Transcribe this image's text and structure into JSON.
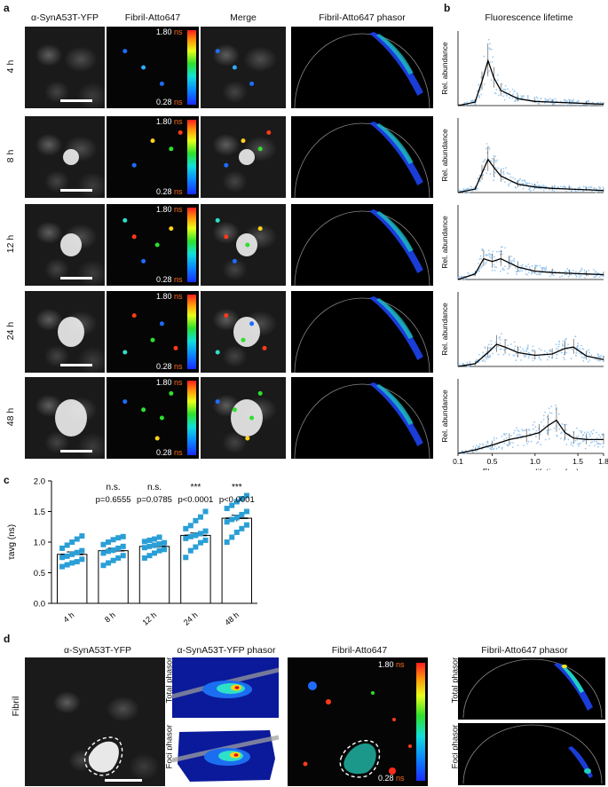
{
  "panel_a": {
    "label": "a",
    "columns": [
      "α-SynA53T-YFP",
      "Fibril-Atto647",
      "Merge",
      "Fibril-Atto647 phasor"
    ],
    "rows": [
      "4 h",
      "8 h",
      "12 h",
      "24 h",
      "48 h"
    ],
    "colorbar": {
      "max": "1.80",
      "min": "0.28",
      "unit": "ns"
    }
  },
  "panel_b": {
    "label": "b",
    "title": "Fluorescence lifetime",
    "ylabel": "Rel. abundance",
    "xlabel": "Fluorescence lifetime (ns)",
    "xticks": [
      "0.1",
      "0.5",
      "1.0",
      "1.5",
      "1.8"
    ]
  },
  "panel_c": {
    "label": "c",
    "ylabel": "τavg (ns)",
    "annotations": [
      {
        "sig": "",
        "p": ""
      },
      {
        "sig": "n.s.",
        "p": "p=0.6555"
      },
      {
        "sig": "n.s.",
        "p": "p=0.0785"
      },
      {
        "sig": "***",
        "p": "p<0.0001"
      },
      {
        "sig": "***",
        "p": "p<0.0001"
      }
    ]
  },
  "panel_d": {
    "label": "d",
    "row_label": "Fibril",
    "columns": [
      "α-SynA53T-YFP",
      "α-SynA53T-YFP phasor",
      "Fibril-Atto647",
      "Fibril-Atto647 phasor"
    ],
    "sub_labels": [
      "Total phasor",
      "Foci phasor"
    ],
    "colorbar": {
      "max": "1.80",
      "min": "0.28",
      "unit": "ns"
    }
  },
  "colors": {
    "bar_fill": "#ffffff",
    "bar_edge": "#000000",
    "dot": "#2a9fd6",
    "scatter_light": "#9cc9f0"
  },
  "chart_data": [
    {
      "type": "bar",
      "categories": [
        "4 h",
        "8 h",
        "12 h",
        "24 h",
        "48 h"
      ],
      "values": [
        0.8,
        0.86,
        0.93,
        1.11,
        1.39
      ],
      "errors": [
        0.04,
        0.04,
        0.03,
        0.04,
        0.05
      ],
      "points": [
        [
          0.6,
          0.63,
          0.66,
          0.68,
          0.72,
          0.75,
          0.77,
          0.8,
          0.83,
          0.86,
          0.9,
          0.95,
          1.0,
          1.05,
          1.1
        ],
        [
          0.62,
          0.66,
          0.7,
          0.74,
          0.78,
          0.82,
          0.85,
          0.87,
          0.9,
          0.93,
          0.96,
          1.0,
          1.04,
          1.07,
          1.09
        ],
        [
          0.74,
          0.78,
          0.82,
          0.86,
          0.88,
          0.91,
          0.93,
          0.95,
          0.97,
          0.99,
          1.01,
          1.03,
          1.05,
          1.08
        ],
        [
          0.75,
          0.86,
          0.92,
          0.99,
          1.03,
          1.06,
          1.09,
          1.11,
          1.14,
          1.18,
          1.22,
          1.27,
          1.35,
          1.41,
          1.5
        ],
        [
          1.0,
          1.08,
          1.16,
          1.22,
          1.28,
          1.33,
          1.37,
          1.4,
          1.45,
          1.5,
          1.55,
          1.6,
          1.66,
          1.71,
          1.76
        ]
      ],
      "xlabel": "",
      "ylabel": "τavg (ns)",
      "ylim": [
        0.0,
        2.0
      ],
      "yticks": [
        "0.0",
        "0.5",
        "1.0",
        "1.5",
        "2.0"
      ]
    },
    {
      "type": "line",
      "xlabel": "Fluorescence lifetime (ns)",
      "ylabel": "Rel. abundance",
      "xlim": [
        0.1,
        1.8
      ],
      "series": [
        {
          "x": [
            0.1,
            0.3,
            0.38,
            0.45,
            0.52,
            0.6,
            0.8,
            1.0,
            1.2,
            1.4,
            1.6,
            1.8
          ],
          "y": [
            0.0,
            0.05,
            0.35,
            0.65,
            0.4,
            0.22,
            0.1,
            0.06,
            0.05,
            0.04,
            0.03,
            0.02
          ]
        },
        {
          "x": [
            0.1,
            0.3,
            0.38,
            0.45,
            0.52,
            0.6,
            0.8,
            1.0,
            1.2,
            1.4,
            1.6,
            1.8
          ],
          "y": [
            0.0,
            0.05,
            0.28,
            0.48,
            0.36,
            0.24,
            0.12,
            0.08,
            0.06,
            0.05,
            0.04,
            0.03
          ]
        },
        {
          "x": [
            0.1,
            0.3,
            0.4,
            0.5,
            0.6,
            0.7,
            0.8,
            1.0,
            1.2,
            1.4,
            1.6,
            1.8
          ],
          "y": [
            0.0,
            0.08,
            0.3,
            0.26,
            0.3,
            0.24,
            0.18,
            0.12,
            0.1,
            0.09,
            0.08,
            0.07
          ]
        },
        {
          "x": [
            0.1,
            0.3,
            0.45,
            0.55,
            0.65,
            0.8,
            1.0,
            1.2,
            1.35,
            1.45,
            1.6,
            1.8
          ],
          "y": [
            0.0,
            0.04,
            0.2,
            0.32,
            0.28,
            0.2,
            0.16,
            0.18,
            0.26,
            0.28,
            0.15,
            0.1
          ]
        },
        {
          "x": [
            0.1,
            0.3,
            0.5,
            0.7,
            0.9,
            1.05,
            1.15,
            1.25,
            1.35,
            1.45,
            1.6,
            1.8
          ],
          "y": [
            0.0,
            0.05,
            0.12,
            0.2,
            0.25,
            0.3,
            0.4,
            0.48,
            0.3,
            0.22,
            0.2,
            0.2
          ]
        }
      ]
    }
  ]
}
